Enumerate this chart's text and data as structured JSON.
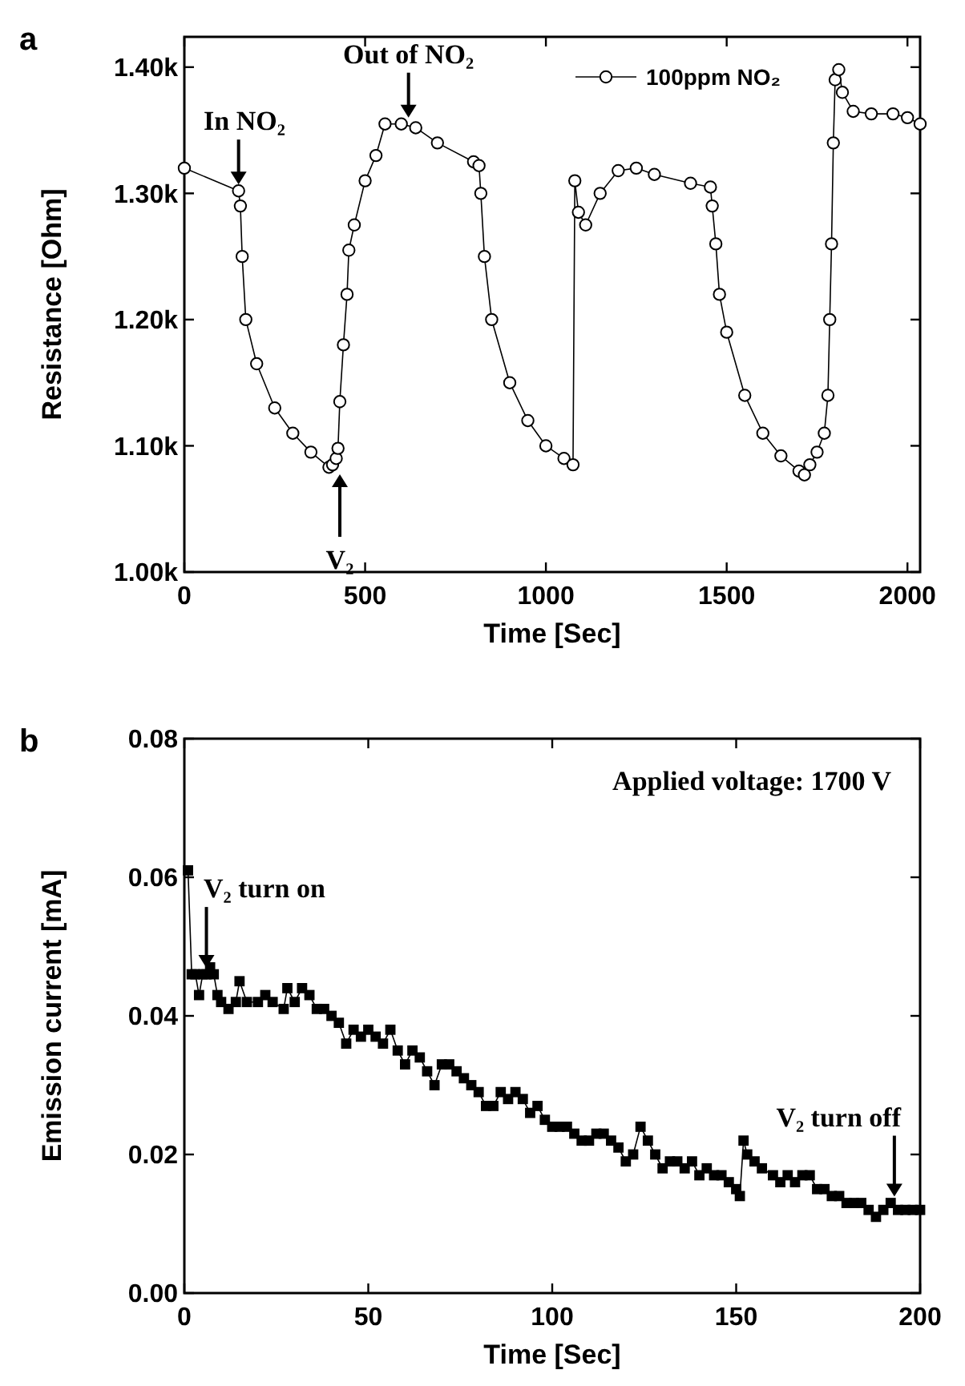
{
  "chart_data": [
    {
      "type": "line",
      "title": "a",
      "xlabel": "Time [Sec]",
      "ylabel": "Resistance [Ohm]",
      "xlim": [
        0,
        2035
      ],
      "ylim": [
        1000,
        1424
      ],
      "xticks": [
        0,
        500,
        1000,
        1500,
        2000
      ],
      "yticks": [
        {
          "value": 1000,
          "label": "1.00k"
        },
        {
          "value": 1100,
          "label": "1.10k"
        },
        {
          "value": 1200,
          "label": "1.20k"
        },
        {
          "value": 1300,
          "label": "1.30k"
        },
        {
          "value": 1400,
          "label": "1.40k"
        }
      ],
      "grid": false,
      "legend": "top right",
      "marker": "circle",
      "line_style": "solid",
      "series": [
        {
          "name": "100ppm NO₂",
          "color": "#000000",
          "x": [
            0,
            150,
            155,
            160,
            170,
            200,
            250,
            300,
            350,
            400,
            410,
            420,
            425,
            430,
            440,
            450,
            455,
            470,
            500,
            530,
            555,
            600,
            640,
            700,
            800,
            815,
            820,
            830,
            850,
            900,
            950,
            1000,
            1050,
            1075,
            1080,
            1090,
            1110,
            1150,
            1200,
            1250,
            1300,
            1400,
            1455,
            1460,
            1470,
            1480,
            1500,
            1550,
            1600,
            1650,
            1700,
            1715,
            1730,
            1750,
            1770,
            1780,
            1785,
            1790,
            1795,
            1800,
            1810,
            1820,
            1850,
            1900,
            1960,
            2000,
            2035
          ],
          "values": [
            1320,
            1302,
            1290,
            1250,
            1200,
            1165,
            1130,
            1110,
            1095,
            1083,
            1085,
            1090,
            1098,
            1135,
            1180,
            1220,
            1255,
            1275,
            1310,
            1330,
            1355,
            1355,
            1352,
            1340,
            1325,
            1322,
            1300,
            1250,
            1200,
            1150,
            1120,
            1100,
            1090,
            1085,
            1310,
            1285,
            1275,
            1300,
            1318,
            1320,
            1315,
            1308,
            1305,
            1290,
            1260,
            1220,
            1190,
            1140,
            1110,
            1092,
            1080,
            1077,
            1085,
            1095,
            1110,
            1140,
            1200,
            1260,
            1340,
            1390,
            1398,
            1380,
            1365,
            1363,
            1363,
            1360,
            1355
          ]
        }
      ],
      "annotations": [
        {
          "text": "In NO₂",
          "x": 150,
          "y": 1302
        },
        {
          "text": "Out of NO₂",
          "x": 620,
          "y": 1355
        },
        {
          "text": "V₂",
          "x": 430,
          "y": 1085
        }
      ]
    },
    {
      "type": "line",
      "title": "b",
      "xlabel": "Time [Sec]",
      "ylabel": "Emission current [mA]",
      "xlim": [
        0,
        200
      ],
      "ylim": [
        0,
        0.08
      ],
      "xticks": [
        0,
        50,
        100,
        150,
        200
      ],
      "yticks": [
        {
          "value": 0,
          "label": "0.00"
        },
        0.02,
        0.04,
        0.06,
        0.08
      ],
      "grid": false,
      "legend": false,
      "marker": "square",
      "line_style": "solid",
      "series": [
        {
          "color": "#000000",
          "x": [
            1,
            2,
            3,
            4,
            5,
            6,
            7,
            8,
            9,
            10,
            12,
            14,
            15,
            17,
            20,
            22,
            24,
            27,
            28,
            30,
            32,
            34,
            36,
            38,
            40,
            42,
            44,
            46,
            48,
            50,
            52,
            54,
            56,
            58,
            60,
            62,
            64,
            66,
            68,
            70,
            72,
            74,
            76,
            78,
            80,
            82,
            84,
            86,
            88,
            90,
            92,
            94,
            96,
            98,
            100,
            102,
            104,
            106,
            108,
            110,
            112,
            114,
            116,
            118,
            120,
            122,
            124,
            126,
            128,
            130,
            132,
            134,
            136,
            138,
            140,
            142,
            144,
            146,
            148,
            150,
            151,
            152,
            153,
            155,
            157,
            160,
            162,
            164,
            166,
            168,
            170,
            172,
            174,
            176,
            178,
            180,
            182,
            184,
            186,
            188,
            190,
            192,
            194,
            196,
            198,
            200
          ],
          "values": [
            0.061,
            0.046,
            0.046,
            0.043,
            0.046,
            0.046,
            0.047,
            0.046,
            0.043,
            0.042,
            0.041,
            0.042,
            0.045,
            0.042,
            0.042,
            0.043,
            0.042,
            0.041,
            0.044,
            0.042,
            0.044,
            0.043,
            0.041,
            0.041,
            0.04,
            0.039,
            0.036,
            0.038,
            0.037,
            0.038,
            0.037,
            0.036,
            0.038,
            0.035,
            0.033,
            0.035,
            0.034,
            0.032,
            0.03,
            0.033,
            0.033,
            0.032,
            0.031,
            0.03,
            0.029,
            0.027,
            0.027,
            0.029,
            0.028,
            0.029,
            0.028,
            0.026,
            0.027,
            0.025,
            0.024,
            0.024,
            0.024,
            0.023,
            0.022,
            0.022,
            0.023,
            0.023,
            0.022,
            0.021,
            0.019,
            0.02,
            0.024,
            0.022,
            0.02,
            0.018,
            0.019,
            0.019,
            0.018,
            0.019,
            0.017,
            0.018,
            0.017,
            0.017,
            0.016,
            0.015,
            0.014,
            0.022,
            0.02,
            0.019,
            0.018,
            0.017,
            0.016,
            0.017,
            0.016,
            0.017,
            0.017,
            0.015,
            0.015,
            0.014,
            0.014,
            0.013,
            0.013,
            0.013,
            0.012,
            0.011,
            0.012,
            0.013,
            0.012,
            0.012,
            0.012,
            0.012
          ]
        }
      ],
      "annotations": [
        "Applied voltage: 1700 V",
        {
          "text": "V₂ turn on",
          "x": 6,
          "y": 0.046
        },
        {
          "text": "V₂ turn off",
          "x": 193,
          "y": 0.013
        }
      ]
    }
  ]
}
